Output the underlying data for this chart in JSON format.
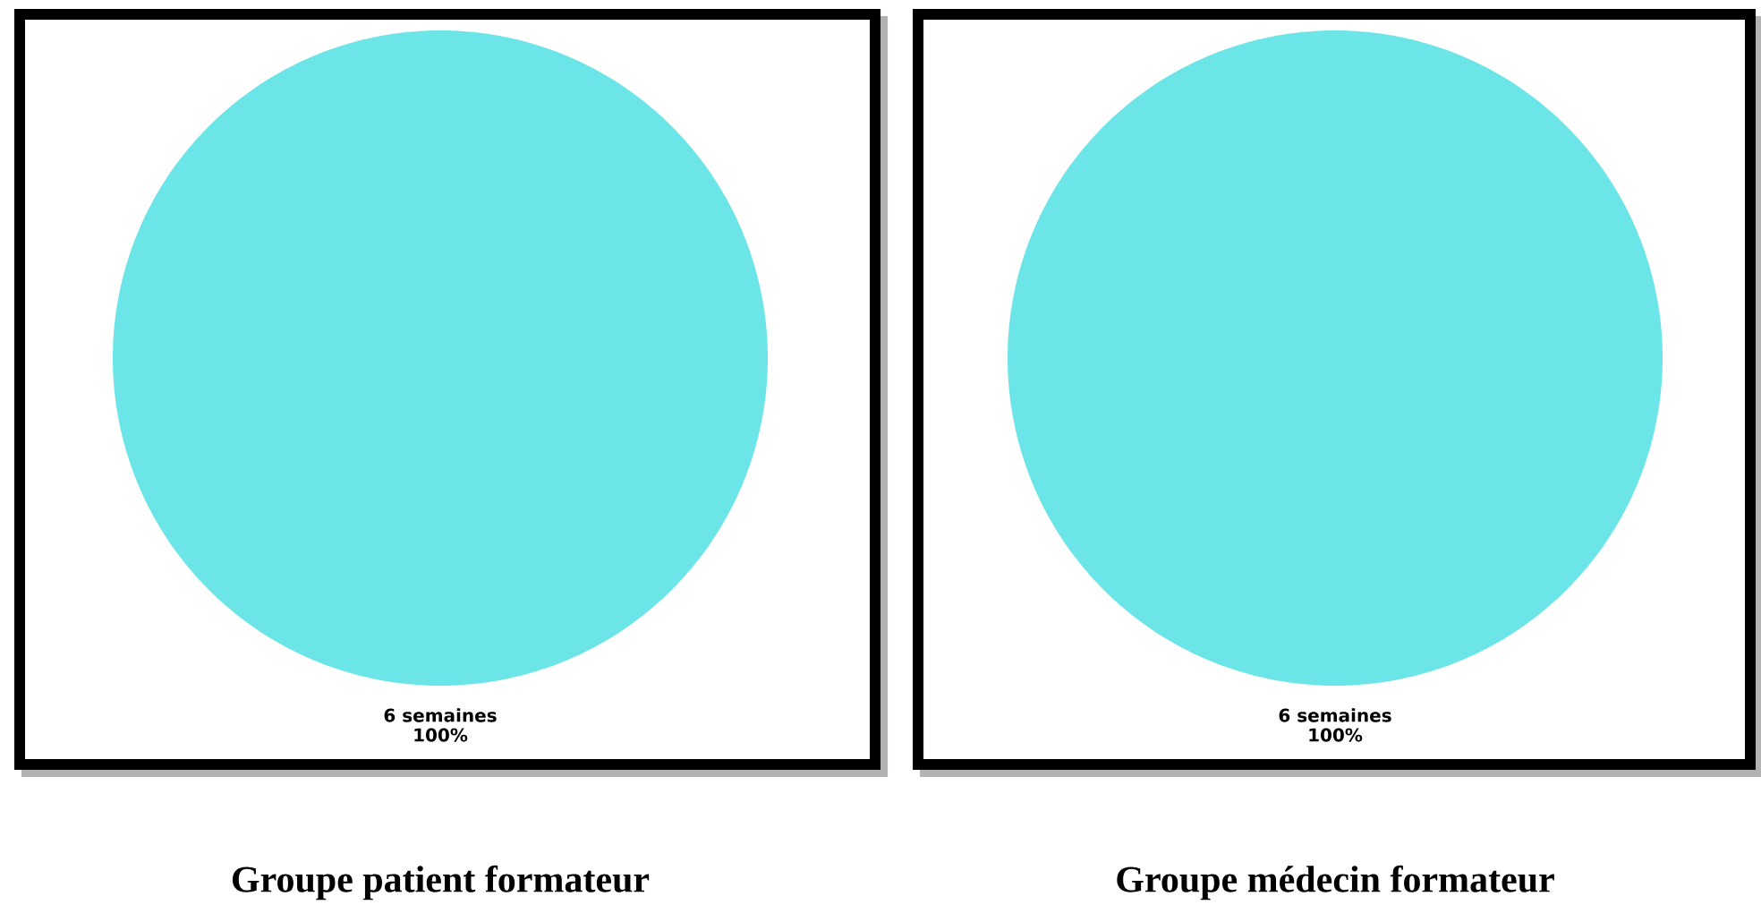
{
  "chart_data": [
    {
      "type": "pie",
      "title": "Groupe patient formateur",
      "categories": [
        "6 semaines"
      ],
      "values": [
        100
      ],
      "colors": [
        "#6be5e8"
      ],
      "value_labels": [
        "100%"
      ]
    },
    {
      "type": "pie",
      "title": "Groupe médecin formateur",
      "categories": [
        "6 semaines"
      ],
      "values": [
        100
      ],
      "colors": [
        "#6be5e8"
      ],
      "value_labels": [
        "100%"
      ]
    }
  ]
}
